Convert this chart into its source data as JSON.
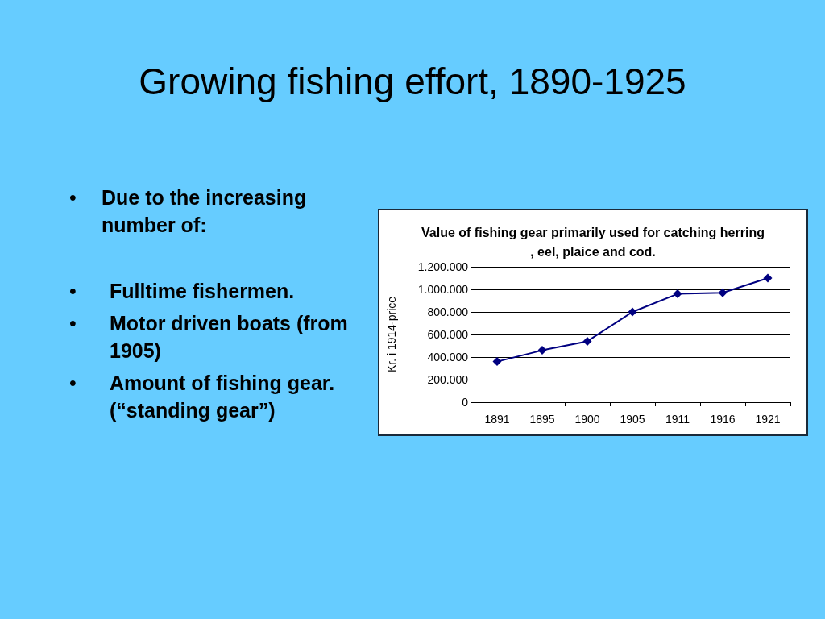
{
  "chart_data": {
    "type": "line",
    "title": "Growing fishing effort, 1890-1925",
    "subtitle": "Value of fishing gear primarily used for catching herring, eel, plaice and cod.",
    "ylabel": "Kr. i 1914-price",
    "categories": [
      "1891",
      "1895",
      "1900",
      "1905",
      "1911",
      "1916",
      "1921"
    ],
    "series": [
      {
        "color": "#000080",
        "values": [
          360000,
          460000,
          540000,
          800000,
          960000,
          970000,
          1100000
        ]
      }
    ],
    "ylim": [
      0,
      1200000
    ],
    "yticks": [
      0,
      {
        "value": 200000,
        "label": "200.000"
      },
      {
        "value": 400000,
        "label": "400.000"
      },
      {
        "value": 600000,
        "label": "600.000"
      },
      {
        "value": 800000,
        "label": "800.000"
      },
      {
        "value": 1000000,
        "label": "1.000.000"
      },
      {
        "value": 1200000,
        "label": "1.200.000"
      }
    ],
    "grid": "y",
    "marker": "diamond",
    "annotations": [
      "• Due to the increasing number of:",
      "• Fulltime fishermen.",
      "• Motor driven boats (from 1905)",
      "• Amount of fishing gear. (“standing gear”)"
    ]
  }
}
